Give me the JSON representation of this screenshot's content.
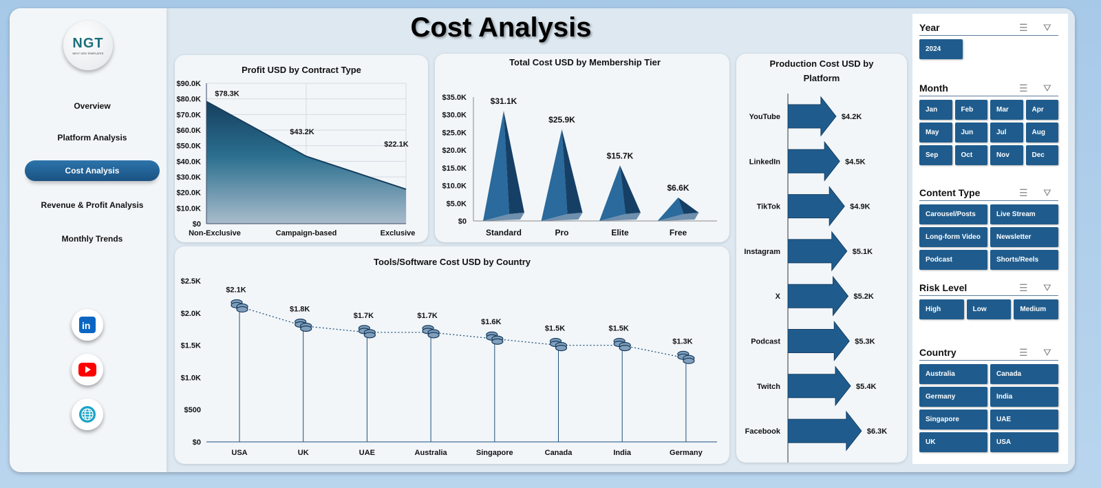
{
  "page_title": "Cost Analysis",
  "logo": {
    "text": "NGT",
    "subtext": "NEXT GEN TEMPLATES"
  },
  "nav": [
    {
      "label": "Overview"
    },
    {
      "label": "Platform Analysis"
    },
    {
      "label": "Cost Analysis",
      "active": true
    },
    {
      "label": "Revenue & Profit Analysis"
    },
    {
      "label": "Monthly Trends"
    }
  ],
  "social": [
    "linkedin-icon",
    "youtube-icon",
    "globe-icon"
  ],
  "colors": {
    "primary": "#1f5c8d",
    "dark": "#163f66"
  },
  "slicers": [
    {
      "title": "Year",
      "cols": 3,
      "items": [
        "2024"
      ]
    },
    {
      "title": "Month",
      "cols": 4,
      "items": [
        "Jan",
        "Feb",
        "Mar",
        "Apr",
        "May",
        "Jun",
        "Jul",
        "Aug",
        "Sep",
        "Oct",
        "Nov",
        "Dec"
      ]
    },
    {
      "title": "Content Type",
      "cols": 2,
      "items": [
        "Carousel/Posts",
        "Live Stream",
        "Long-form Video",
        "Newsletter",
        "Podcast",
        "Shorts/Reels"
      ]
    },
    {
      "title": "Risk Level",
      "cols": 3,
      "items": [
        "High",
        "Low",
        "Medium"
      ]
    },
    {
      "title": "Country",
      "cols": 2,
      "items": [
        "Australia",
        "Canada",
        "Germany",
        "India",
        "Singapore",
        "UAE",
        "UK",
        "USA"
      ]
    }
  ],
  "chart_data": [
    {
      "id": "c1",
      "type": "area",
      "title": "Profit USD by Contract Type",
      "categories": [
        "Non-Exclusive",
        "Campaign-based",
        "Exclusive"
      ],
      "values": [
        78.3,
        43.2,
        22.1
      ],
      "labels": [
        "$78.3K",
        "$43.2K",
        "$22.1K"
      ],
      "ylim": [
        0,
        90
      ],
      "yticks": [
        "$0",
        "$10.0K",
        "$20.0K",
        "$30.0K",
        "$40.0K",
        "$50.0K",
        "$60.0K",
        "$70.0K",
        "$80.0K",
        "$90.0K"
      ],
      "grid": true
    },
    {
      "id": "c2",
      "type": "bar",
      "title": "Total Cost USD by Membership Tier",
      "categories": [
        "Standard",
        "Pro",
        "Elite",
        "Free"
      ],
      "values": [
        31.1,
        25.9,
        15.7,
        6.6
      ],
      "labels": [
        "$31.1K",
        "$25.9K",
        "$15.7K",
        "$6.6K"
      ],
      "ylim": [
        0,
        35
      ],
      "yticks": [
        "$0",
        "$5.0K",
        "$10.0K",
        "$15.0K",
        "$20.0K",
        "$25.0K",
        "$30.0K",
        "$35.0K"
      ]
    },
    {
      "id": "c3",
      "type": "bar",
      "title": "Production Cost USD by Platform",
      "categories": [
        "YouTube",
        "LinkedIn",
        "TikTok",
        "Instagram",
        "X",
        "Podcast",
        "Twitch",
        "Facebook"
      ],
      "values": [
        4.2,
        4.5,
        4.9,
        5.1,
        5.2,
        5.3,
        5.4,
        6.3
      ],
      "labels": [
        "$4.2K",
        "$4.5K",
        "$4.9K",
        "$5.1K",
        "$5.2K",
        "$5.3K",
        "$5.4K",
        "$6.3K"
      ]
    },
    {
      "id": "c4",
      "type": "line",
      "title": "Tools/Software Cost USD by Country",
      "categories": [
        "USA",
        "UK",
        "UAE",
        "Australia",
        "Singapore",
        "Canada",
        "India",
        "Germany"
      ],
      "values": [
        2.1,
        1.8,
        1.7,
        1.7,
        1.6,
        1.5,
        1.5,
        1.3
      ],
      "labels": [
        "$2.1K",
        "$1.8K",
        "$1.7K",
        "$1.7K",
        "$1.6K",
        "$1.5K",
        "$1.5K",
        "$1.3K"
      ],
      "ylim": [
        0,
        2.5
      ],
      "yticks": [
        "$0",
        "$500",
        "$1.0K",
        "$1.5K",
        "$2.0K",
        "$2.5K"
      ]
    }
  ]
}
